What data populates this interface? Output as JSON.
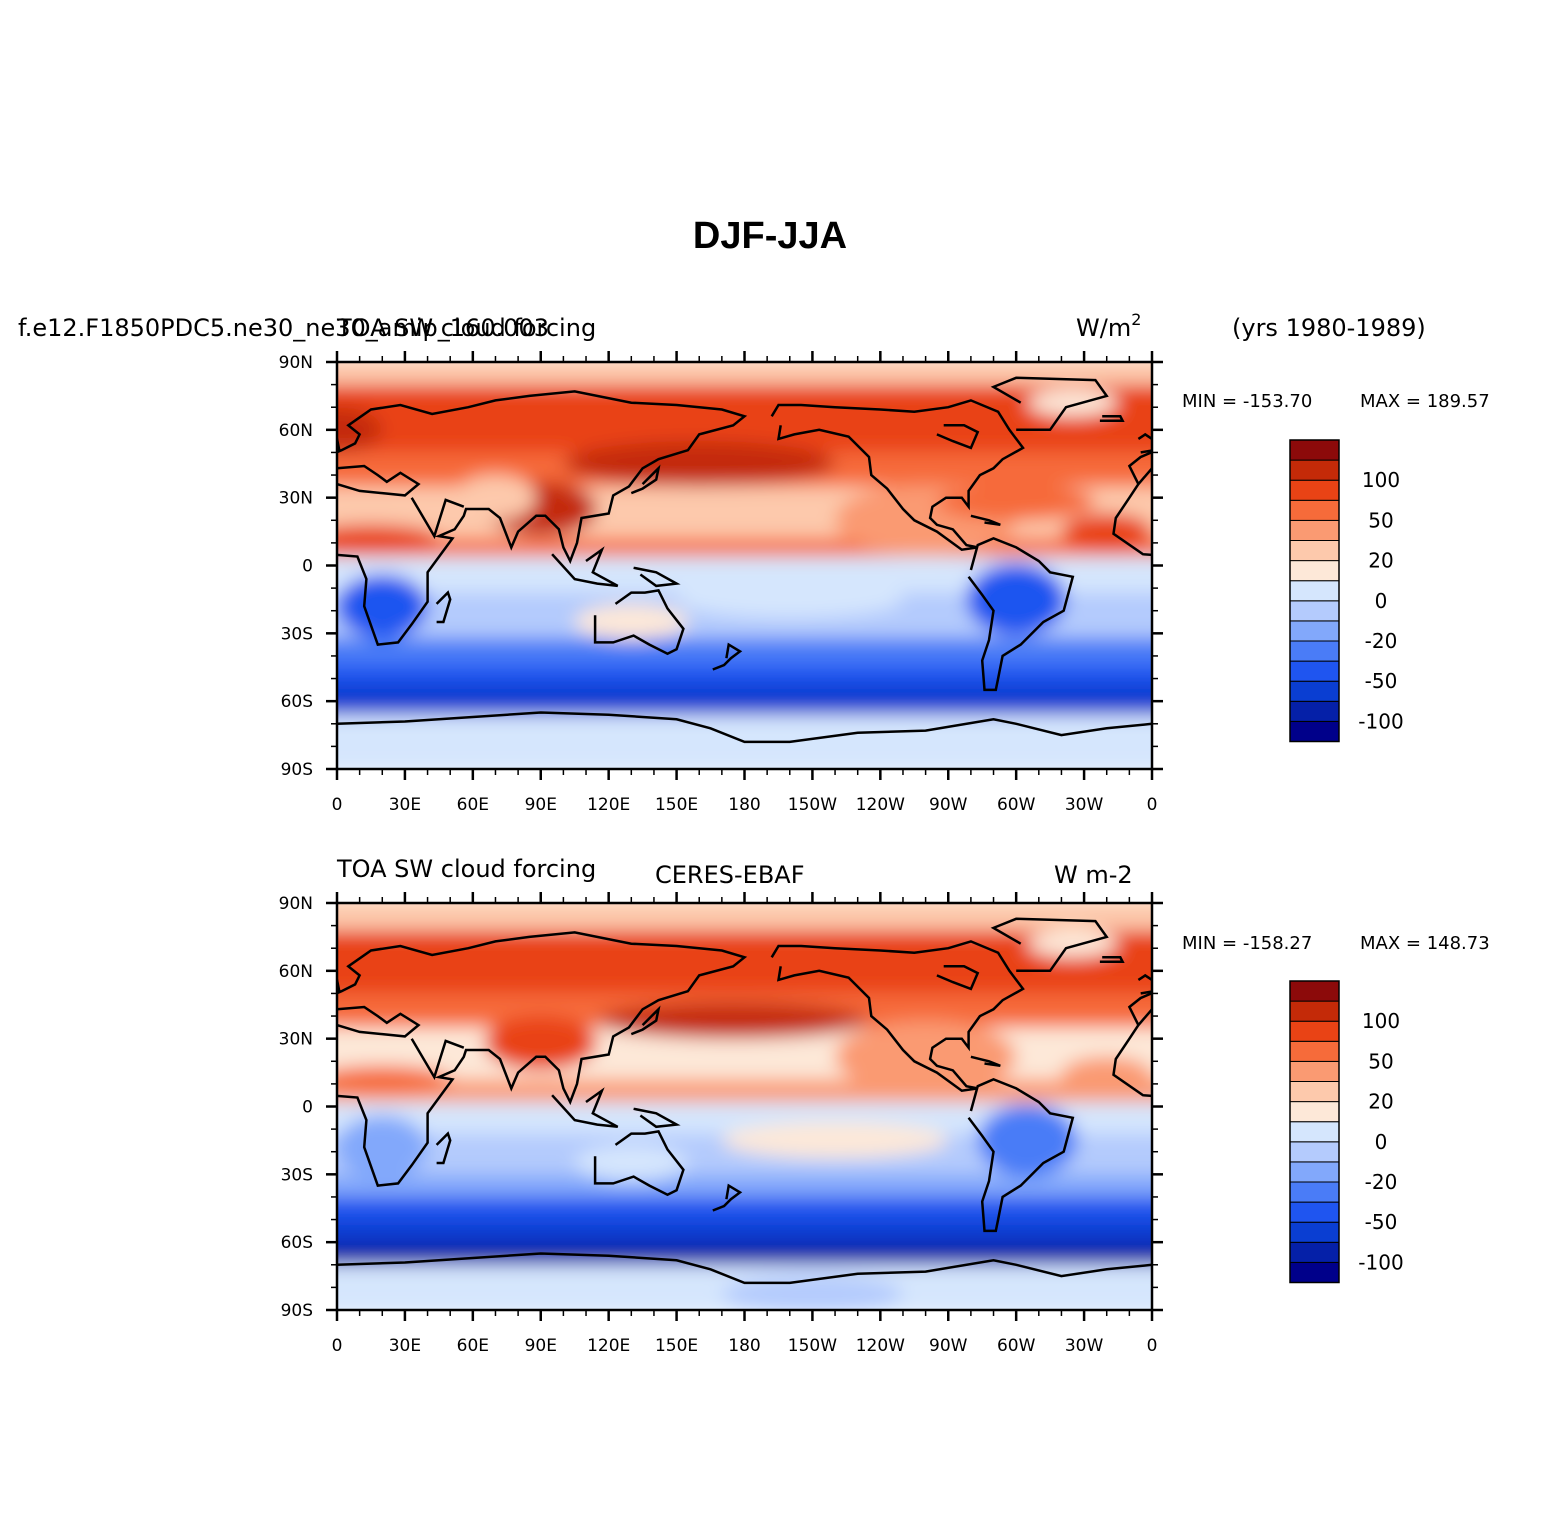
{
  "title": "DJF-JJA",
  "colors": {
    "bins": [
      "#00008a",
      "#0520a8",
      "#0a3ed2",
      "#1f55f0",
      "#4a7cf7",
      "#82a8fb",
      "#b4cbfd",
      "#d5e6fd",
      "#fde8d8",
      "#fdc9ac",
      "#fa9a72",
      "#f66b3a",
      "#e94315",
      "#c42a08",
      "#8c0a0a"
    ],
    "land_outline": "#000000",
    "background": "#ffffff"
  },
  "chart_data": [
    {
      "type": "heatmap",
      "id": "model",
      "left_title": "TOA SW cloud forcing",
      "case_title": "f.e12.F1850PDC5.ne30_ne30_amip_160.003",
      "units": "W/m",
      "units_superscript": "2",
      "years": "(yrs 1980-1989)",
      "min_label": "MIN = -153.70",
      "max_label": "MAX = 189.57",
      "min": -153.7,
      "max": 189.57,
      "x_ticks": [
        "0",
        "30E",
        "60E",
        "90E",
        "120E",
        "150E",
        "180",
        "150W",
        "120W",
        "90W",
        "60W",
        "30W",
        "0"
      ],
      "y_ticks": [
        "90N",
        "60N",
        "30N",
        "0",
        "30S",
        "60S",
        "90S"
      ],
      "colorbar_labels": [
        "100",
        "50",
        "20",
        "0",
        "-20",
        "-50",
        "-100"
      ]
    },
    {
      "type": "heatmap",
      "id": "obs",
      "left_title": "TOA SW cloud forcing",
      "case_title": "CERES-EBAF",
      "units": "W m-2",
      "min_label": "MIN = -158.27",
      "max_label": "MAX = 148.73",
      "min": -158.27,
      "max": 148.73,
      "x_ticks": [
        "0",
        "30E",
        "60E",
        "90E",
        "120E",
        "150E",
        "180",
        "150W",
        "120W",
        "90W",
        "60W",
        "30W",
        "0"
      ],
      "y_ticks": [
        "90N",
        "60N",
        "30N",
        "0",
        "30S",
        "60S",
        "90S"
      ],
      "colorbar_labels": [
        "100",
        "50",
        "20",
        "0",
        "-20",
        "-50",
        "-100"
      ]
    }
  ]
}
